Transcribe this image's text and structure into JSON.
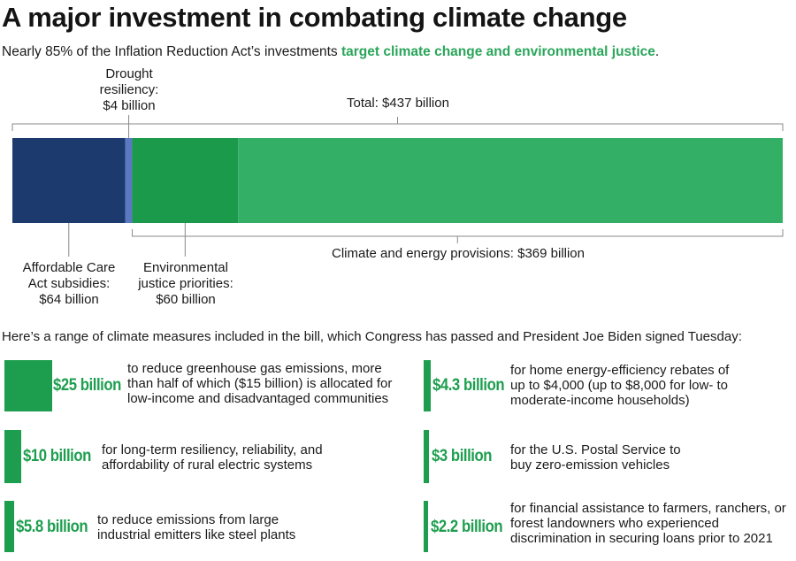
{
  "title": "A major investment in combating climate change",
  "subtitle": {
    "before": "Nearly 85% of the Inflation Reduction Act’s investments ",
    "highlight": "target climate change and environmental justice",
    "after": "."
  },
  "chart_data": {
    "type": "bar",
    "orientation": "horizontal-stacked",
    "unit": "billion USD",
    "total": 437,
    "segments": [
      {
        "label": "Affordable Care Act subsidies",
        "value": 64,
        "color": "#1c3a6e"
      },
      {
        "label": "Drought resiliency",
        "value": 4,
        "color": "#5a79c0"
      },
      {
        "label": "Environmental justice priorities",
        "value": 60,
        "color": "#1a9a4a"
      },
      {
        "label": "Climate and energy provisions (other)",
        "value": 309,
        "color": "#33b066"
      }
    ],
    "annotations": {
      "drought": [
        "Drought",
        "resiliency:",
        "$4 billion"
      ],
      "total": "Total: $437 billion",
      "aca": [
        "Affordable Care",
        "Act subsidies:",
        "$64 billion"
      ],
      "ej": [
        "Environmental",
        "justice priorities:",
        "$60 billion"
      ],
      "climate": "Climate and energy provisions: $369 billion"
    },
    "brackets": {
      "total": {
        "from": 0,
        "to": 437
      },
      "climate": {
        "from": 68,
        "to": 437
      }
    }
  },
  "intro": "Here’s a range of climate measures included in the bill, which Congress has passed and President Joe Biden signed Tuesday:",
  "measures": [
    {
      "amount": "$25 billion",
      "value": 25,
      "lines": [
        "to reduce greenhouse gas emissions, more",
        "than half of which ($15 billion) is allocated for",
        "low-income and disadvantaged communities"
      ]
    },
    {
      "amount": "$10 billion",
      "value": 10,
      "lines": [
        "for long-term resiliency, reliability, and",
        "affordability of rural electric systems"
      ]
    },
    {
      "amount": "$5.8 billion",
      "value": 5.8,
      "lines": [
        "to reduce emissions from large",
        "industrial emitters like steel plants"
      ]
    },
    {
      "amount": "$4.3 billion",
      "value": 4.3,
      "lines": [
        "for home energy-efficiency rebates of",
        "up to $4,000 (up to $8,000 for low- to",
        "moderate-income households)"
      ]
    },
    {
      "amount": "$3 billion",
      "value": 3,
      "lines": [
        "for the U.S. Postal Service to",
        "buy zero-emission vehicles"
      ]
    },
    {
      "amount": "$2.2 billion",
      "value": 2.2,
      "lines": [
        "for financial assistance to farmers, ranchers, or",
        "forest landowners who experienced",
        "discrimination in securing loans prior to 2021"
      ]
    }
  ]
}
